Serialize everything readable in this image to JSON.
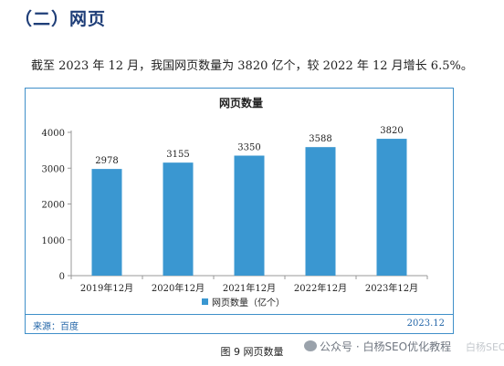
{
  "page": {
    "section_title": "（二）网页",
    "intro": "截至 2023 年 12 月，我国网页数量为 3820 亿个，较 2022 年 12 月增长 6.5%。",
    "source": "来源：百度",
    "date": "2023.12",
    "caption": "图 9  网页数量",
    "watermark": "公众号 · 白杨SEO优化教程",
    "watermark_logo": "白杨SEO"
  },
  "colors": {
    "bar": "#3a97d1",
    "frame": "#3f8fc9",
    "title_blue": "#1f3e78"
  },
  "chart_data": {
    "type": "bar",
    "title": "网页数量",
    "categories": [
      "2019年12月",
      "2020年12月",
      "2021年12月",
      "2022年12月",
      "2023年12月"
    ],
    "series": [
      {
        "name": "网页数量（亿个）",
        "values": [
          2978,
          3155,
          3350,
          3588,
          3820
        ]
      }
    ],
    "data_labels": [
      "2978",
      "3155",
      "3350",
      "3588",
      "3820"
    ],
    "ylim": [
      0,
      4000
    ],
    "yticks": [
      0,
      1000,
      2000,
      3000,
      4000
    ],
    "ytick_labels": [
      "0",
      "1000",
      "2000",
      "3000",
      "4000"
    ],
    "grid": false,
    "legend_position": "bottom"
  }
}
